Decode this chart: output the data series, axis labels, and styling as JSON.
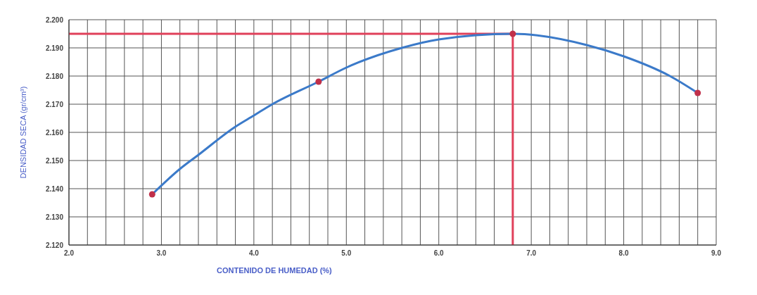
{
  "chart_data": {
    "type": "scatter",
    "xlabel": "CONTENIDO DE HUMEDAD (%)",
    "ylabel": "DENSIDAD SECA (gr/cm³)",
    "xlim": [
      2.0,
      9.0
    ],
    "ylim": [
      2.12,
      2.2
    ],
    "xticks": [
      {
        "value": 2.0,
        "label": "2.0"
      },
      {
        "value": 2.2,
        "label": null
      },
      {
        "value": 2.4,
        "label": null
      },
      {
        "value": 2.6,
        "label": null
      },
      {
        "value": 2.8,
        "label": null
      },
      {
        "value": 3.0,
        "label": "3.0"
      },
      {
        "value": 3.2,
        "label": null
      },
      {
        "value": 3.4,
        "label": null
      },
      {
        "value": 3.6,
        "label": null
      },
      {
        "value": 3.8,
        "label": null
      },
      {
        "value": 4.0,
        "label": "4.0"
      },
      {
        "value": 4.2,
        "label": null
      },
      {
        "value": 4.4,
        "label": null
      },
      {
        "value": 4.6,
        "label": null
      },
      {
        "value": 4.8,
        "label": null
      },
      {
        "value": 5.0,
        "label": "5.0"
      },
      {
        "value": 5.2,
        "label": null
      },
      {
        "value": 5.4,
        "label": null
      },
      {
        "value": 5.6,
        "label": null
      },
      {
        "value": 5.8,
        "label": null
      },
      {
        "value": 6.0,
        "label": "6.0"
      },
      {
        "value": 6.2,
        "label": null
      },
      {
        "value": 6.4,
        "label": null
      },
      {
        "value": 6.6,
        "label": null
      },
      {
        "value": 6.8,
        "label": null
      },
      {
        "value": 7.0,
        "label": "7.0"
      },
      {
        "value": 7.2,
        "label": null
      },
      {
        "value": 7.4,
        "label": null
      },
      {
        "value": 7.6,
        "label": null
      },
      {
        "value": 7.8,
        "label": null
      },
      {
        "value": 8.0,
        "label": "8.0"
      },
      {
        "value": 8.2,
        "label": null
      },
      {
        "value": 8.4,
        "label": null
      },
      {
        "value": 8.6,
        "label": null
      },
      {
        "value": 8.8,
        "label": null
      },
      {
        "value": 9.0,
        "label": "9.0"
      }
    ],
    "yticks": [
      {
        "value": 2.12,
        "label": "2.120"
      },
      {
        "value": 2.13,
        "label": "2.130"
      },
      {
        "value": 2.14,
        "label": "2.140"
      },
      {
        "value": 2.15,
        "label": "2.150"
      },
      {
        "value": 2.16,
        "label": "2.160"
      },
      {
        "value": 2.17,
        "label": "2.170"
      },
      {
        "value": 2.18,
        "label": "2.180"
      },
      {
        "value": 2.19,
        "label": "2.190"
      },
      {
        "value": 2.2,
        "label": "2.200"
      }
    ],
    "grid": true,
    "marker": "circle",
    "series": [
      {
        "type": "line",
        "color": "#3b7ac9",
        "marker": "none",
        "x": [
          2.9,
          3.2,
          3.4,
          3.8,
          4.0,
          4.2,
          4.7,
          5.0,
          5.6,
          6.0,
          6.8,
          7.6,
          8.0,
          8.5,
          8.8
        ],
        "values": [
          2.138,
          2.147,
          2.152,
          2.162,
          2.166,
          2.17,
          2.178,
          2.183,
          2.19,
          2.193,
          2.195,
          2.191,
          2.187,
          2.18,
          2.174
        ]
      },
      {
        "color": "#c0304a",
        "x": [
          2.9,
          4.7,
          6.8,
          8.8
        ],
        "values": [
          2.138,
          2.178,
          2.195,
          2.174
        ]
      }
    ],
    "ref_lines": [
      {
        "axis": "y",
        "value": 2.195,
        "color": "#e0405a"
      },
      {
        "axis": "x",
        "value": 6.8,
        "color": "#e0405a"
      }
    ]
  }
}
